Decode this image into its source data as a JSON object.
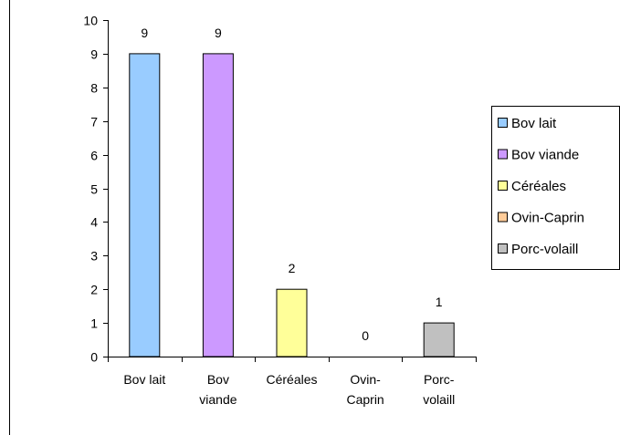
{
  "chart_data": {
    "type": "bar",
    "categories": [
      "Bov lait",
      "Bov viande",
      "Céréales",
      "Ovin-Caprin",
      "Porc-volaill"
    ],
    "category_tick_lines": [
      [
        "Bov lait"
      ],
      [
        "Bov",
        "viande"
      ],
      [
        "Céréales"
      ],
      [
        "Ovin-",
        "Caprin"
      ],
      [
        "Porc-",
        "volaill"
      ]
    ],
    "values": [
      9,
      9,
      2,
      0,
      1
    ],
    "colors": [
      "#99CCFF",
      "#CC99FF",
      "#FFFF99",
      "#FFCC99",
      "#C0C0C0"
    ],
    "ylim": [
      0,
      10
    ],
    "yticks": [
      0,
      1,
      2,
      3,
      4,
      5,
      6,
      7,
      8,
      9,
      10
    ],
    "grid": false,
    "data_labels": true,
    "legend": {
      "position": "right",
      "entries": [
        "Bov lait",
        "Bov viande",
        "Céréales",
        "Ovin-Caprin",
        "Porc-volaill"
      ]
    },
    "title": "",
    "xlabel": "",
    "ylabel": ""
  }
}
